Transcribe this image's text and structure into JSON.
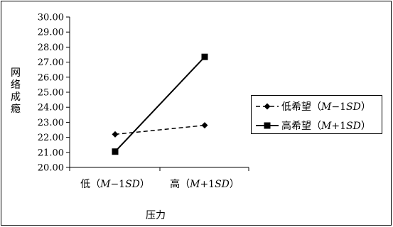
{
  "chart_data": {
    "type": "line",
    "categories": [
      {
        "prefix": "低（",
        "var": "M",
        "op": "−1",
        "sd": "SD",
        "suffix": "）"
      },
      {
        "prefix": "高（",
        "var": "M",
        "op": "+1",
        "sd": "SD",
        "suffix": "）"
      }
    ],
    "series": [
      {
        "name": {
          "prefix": "低希望（",
          "var": "M",
          "op": "−1",
          "sd": "SD",
          "suffix": "）"
        },
        "values": [
          22.2,
          22.8
        ],
        "line": "dashed",
        "marker": "diamond",
        "color": "#000000"
      },
      {
        "name": {
          "prefix": "高希望（",
          "var": "M",
          "op": "+1",
          "sd": "SD",
          "suffix": "）"
        },
        "values": [
          21.05,
          27.35
        ],
        "line": "solid",
        "marker": "square",
        "color": "#000000"
      }
    ],
    "xlabel": "压力",
    "ylabel": "网络成瘾",
    "ylim": [
      20,
      30
    ],
    "yticks": [
      "20.00",
      "21.00",
      "22.00",
      "23.00",
      "24.00",
      "25.00",
      "26.00",
      "27.00",
      "28.00",
      "29.00",
      "30.00"
    ],
    "grid": false,
    "legend_position": "right"
  }
}
